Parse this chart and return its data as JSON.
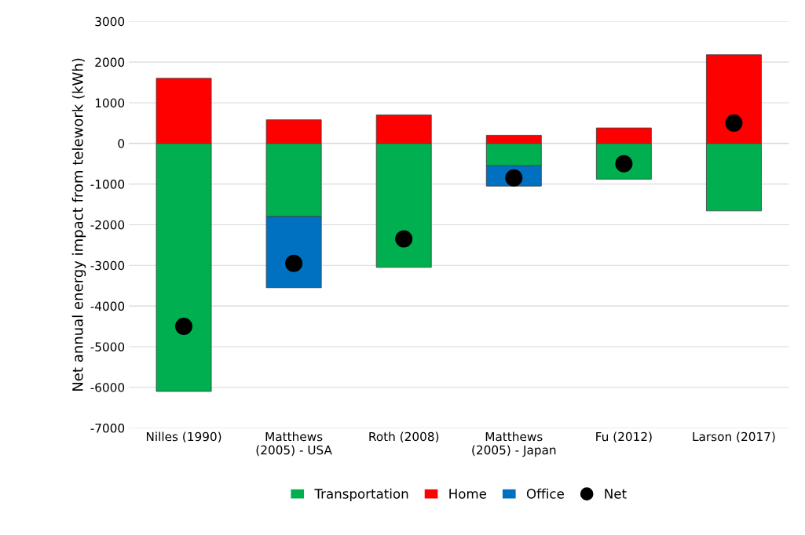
{
  "chart_data": {
    "type": "bar",
    "stacked": true,
    "ylabel": "Net annual energy impact from telework (kWh)",
    "categories": [
      "Nilles (1990)",
      "Matthews (2005) - USA",
      "Roth (2008)",
      "Matthews (2005) - Japan",
      "Fu (2012)",
      "Larson (2017)"
    ],
    "series": [
      {
        "name": "Transportation",
        "color": "#00b050",
        "values": [
          -6100,
          -1800,
          -3050,
          -550,
          -880,
          -1660
        ]
      },
      {
        "name": "Home",
        "color": "#ff0000",
        "values": [
          1600,
          580,
          700,
          200,
          380,
          2180
        ]
      },
      {
        "name": "Office",
        "color": "#0070c0",
        "values": [
          null,
          -1750,
          null,
          -500,
          null,
          null
        ]
      },
      {
        "name": "Net",
        "type": "scatter",
        "marker": "circle",
        "color": "#000000",
        "values": [
          -4500,
          -2950,
          -2350,
          -850,
          -500,
          500
        ]
      }
    ],
    "ylim": [
      -7000,
      3000
    ],
    "yticks": [
      -7000,
      -6000,
      -5000,
      -4000,
      -3000,
      -2000,
      -1000,
      0,
      1000,
      2000,
      3000
    ],
    "grid": "y",
    "legend": "bottom"
  }
}
